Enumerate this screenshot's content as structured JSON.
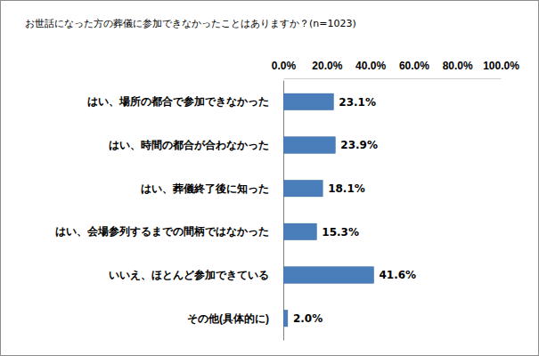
{
  "chart_data": {
    "type": "bar",
    "title": "お世話になった方の葬儀に参加できなかったことはありますか？(n=1023)",
    "orientation": "horizontal",
    "categories": [
      "はい、場所の都合で参加できなかった",
      "はい、時間の都合が合わなかった",
      "はい、葬儀終了後に知った",
      "はい、会場参列するまでの間柄ではなかった",
      "いいえ、ほとんど参加できている",
      "その他(具体的に)"
    ],
    "values": [
      23.1,
      23.9,
      18.1,
      15.3,
      41.6,
      2.0
    ],
    "value_labels": [
      "23.1%",
      "23.9%",
      "18.1%",
      "15.3%",
      "41.6%",
      "2.0%"
    ],
    "data_labels": true,
    "color": "#4a7ebb",
    "xlim": [
      0,
      100
    ],
    "xticks": [
      {
        "value": 0,
        "label": "0.0%"
      },
      {
        "value": 20,
        "label": "20.0%"
      },
      {
        "value": 40,
        "label": "40.0%"
      },
      {
        "value": 60,
        "label": "60.0%"
      },
      {
        "value": 80,
        "label": "80.0%"
      },
      {
        "value": 100,
        "label": "100.0%"
      }
    ],
    "grid": false
  }
}
